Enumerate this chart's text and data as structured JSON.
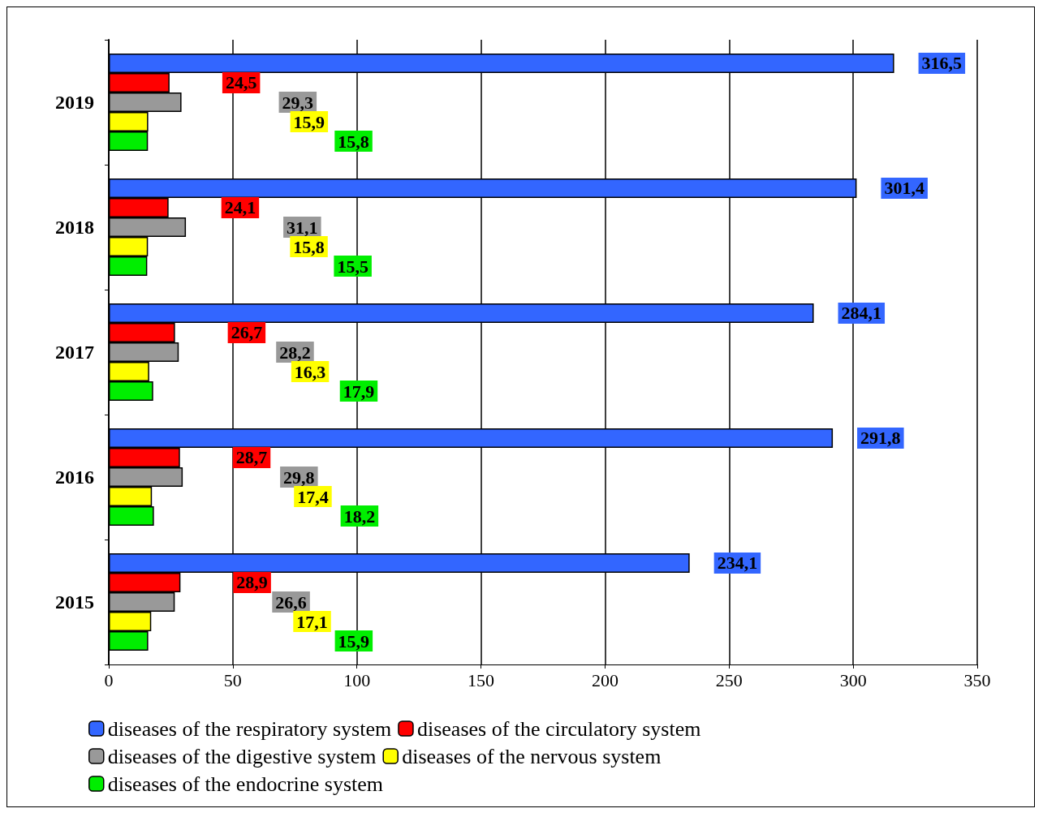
{
  "chart_data": {
    "type": "bar",
    "orientation": "horizontal",
    "categories": [
      "2019",
      "2018",
      "2017",
      "2016",
      "2015"
    ],
    "xlim": [
      0,
      350
    ],
    "xticks": [
      0,
      50,
      100,
      150,
      200,
      250,
      300,
      350
    ],
    "grid": "x",
    "legend": "bottom",
    "series": [
      {
        "name": "diseases of the respiratory system",
        "color": "#3366ff",
        "values": [
          316.5,
          301.4,
          284.1,
          291.8,
          234.1
        ],
        "value_labels": [
          "316,5",
          "301,4",
          "284,1",
          "291,8",
          "234,1"
        ]
      },
      {
        "name": "diseases of the circulatory system",
        "color": "#ff0000",
        "values": [
          24.5,
          24.1,
          26.7,
          28.7,
          28.9
        ],
        "value_labels": [
          "24,5",
          "24,1",
          "26,7",
          "28,7",
          "28,9"
        ]
      },
      {
        "name": "diseases of the digestive system",
        "color": "#999999",
        "values": [
          29.3,
          31.1,
          28.2,
          29.8,
          26.6
        ],
        "value_labels": [
          "29,3",
          "31,1",
          "28,2",
          "29,8",
          "26,6"
        ]
      },
      {
        "name": "diseases of the nervous system",
        "color": "#ffff00",
        "values": [
          15.9,
          15.8,
          16.3,
          17.4,
          17.1
        ],
        "value_labels": [
          "15,9",
          "15,8",
          "16,3",
          "17,4",
          "17,1"
        ]
      },
      {
        "name": "diseases of the endocrine system",
        "color": "#00ee00",
        "values": [
          15.8,
          15.5,
          17.9,
          18.2,
          15.9
        ],
        "value_labels": [
          "15,8",
          "15,5",
          "17,9",
          "18,2",
          "15,9"
        ]
      }
    ]
  }
}
